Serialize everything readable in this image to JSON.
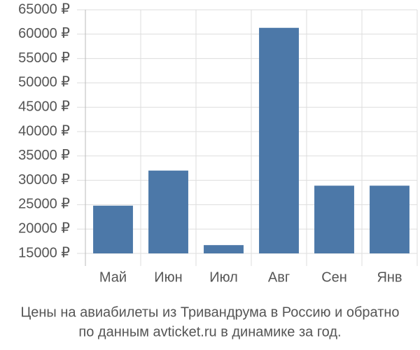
{
  "chart_data": {
    "type": "bar",
    "caption": [
      "Цены на авиабилеты из Тривандрума в Россию и обратно",
      "по данным avticket.ru в динамике за год."
    ],
    "categories": [
      "Май",
      "Июн",
      "Июл",
      "Авг",
      "Сен",
      "Янв"
    ],
    "values": [
      24800,
      32000,
      16700,
      61300,
      28900,
      28900
    ],
    "color": "#4c78a8",
    "ylim": [
      15000,
      65000
    ],
    "yticks": [
      {
        "value": 15000,
        "label": "15000 ₽"
      },
      {
        "value": 20000,
        "label": "20000 ₽"
      },
      {
        "value": 25000,
        "label": "25000 ₽"
      },
      {
        "value": 30000,
        "label": "30000 ₽"
      },
      {
        "value": 35000,
        "label": "35000 ₽"
      },
      {
        "value": 40000,
        "label": "40000 ₽"
      },
      {
        "value": 45000,
        "label": "45000 ₽"
      },
      {
        "value": 50000,
        "label": "50000 ₽"
      },
      {
        "value": 55000,
        "label": "55000 ₽"
      },
      {
        "value": 60000,
        "label": "60000 ₽"
      },
      {
        "value": 65000,
        "label": "65000 ₽"
      }
    ],
    "grid": true
  }
}
